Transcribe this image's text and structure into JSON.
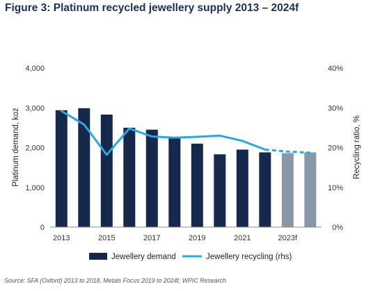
{
  "title": "Figure 3: Platinum recycled jewellery supply 2013 – 2024f",
  "source": "Source: SFA (Oxford) 2013 to 2018, Metals Focus 2019 to 2024f, WPIC Research",
  "colors": {
    "title": "#1a2f5a",
    "bar_actual": "#16294d",
    "bar_forecast": "#8a97a6",
    "line": "#29a8e0"
  },
  "chart_data": {
    "type": "bar",
    "x": [
      2013,
      2014,
      2015,
      2016,
      2017,
      2018,
      2019,
      2020,
      2021,
      2022,
      2023,
      2024
    ],
    "x_tick_labels": [
      "2013",
      "2015",
      "2017",
      "2019",
      "2021",
      "2023f"
    ],
    "x_tick_years": [
      2013,
      2015,
      2017,
      2019,
      2021,
      2023
    ],
    "ylabel": "Platinum demand, koz",
    "y2label": "Recycling ratio, %",
    "ylim": [
      0,
      4000
    ],
    "y_ticks": [
      "0",
      "1,000",
      "2,000",
      "3,000",
      "4,000"
    ],
    "y2lim": [
      0,
      40
    ],
    "y2_ticks": [
      "0%",
      "10%",
      "20%",
      "30%",
      "40%"
    ],
    "grid": false,
    "legend_position": "bottom",
    "series": [
      {
        "name": "Jewellery demand",
        "type": "bar",
        "axis": "left",
        "values": [
          2940,
          2990,
          2830,
          2500,
          2450,
          2250,
          2100,
          1830,
          1950,
          1880,
          1860,
          1880
        ],
        "forecast_from": 2023
      },
      {
        "name": "Jewellery recycling (rhs)",
        "type": "line",
        "axis": "right",
        "values": [
          29.2,
          25.8,
          18.2,
          24.8,
          22.8,
          22.5,
          22.7,
          23.0,
          21.7,
          19.5,
          19.0,
          18.7
        ],
        "forecast_from": 2022
      }
    ]
  }
}
